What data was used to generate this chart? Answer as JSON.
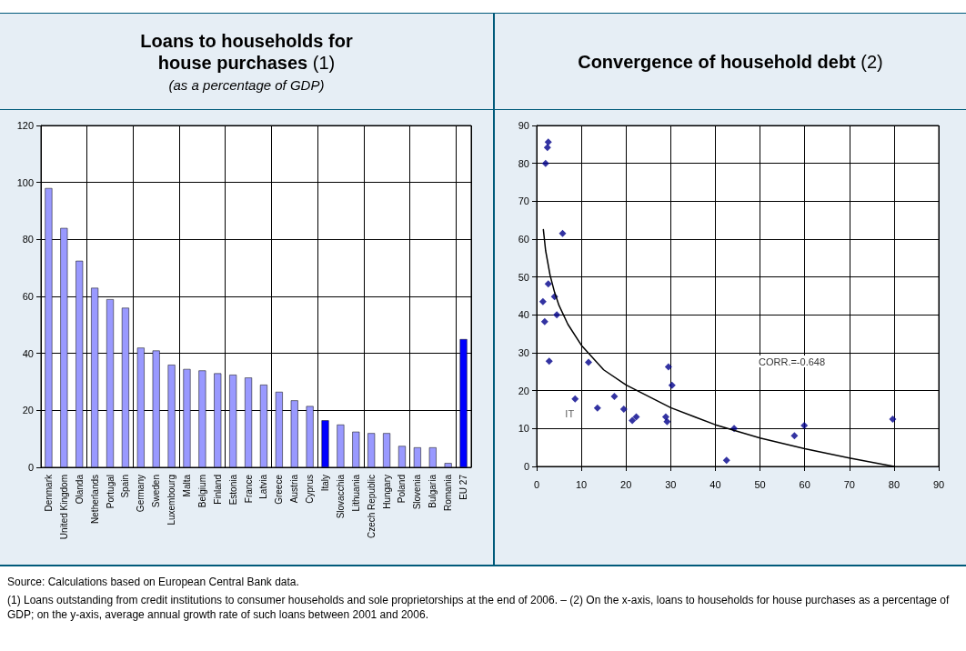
{
  "chart_data": [
    {
      "type": "bar",
      "title": "Loans to households for house purchases (1)",
      "subtitle": "(as a percentage of GDP)",
      "categories": [
        "Denmark",
        "United Kingdom",
        "Olanda",
        "Netherlands",
        "Portugal",
        "Spain",
        "Germany",
        "Sweden",
        "Luxembourg",
        "Malta",
        "Belgium",
        "Finland",
        "Estonia",
        "France",
        "Latvia",
        "Greece",
        "Austria",
        "Cyprus",
        "Italy",
        "Slovacchia",
        "Lithuania",
        "Czech Republic",
        "Hungary",
        "Poland",
        "Slovenia",
        "Bulgaria",
        "Romania",
        "EU 27"
      ],
      "values": [
        98,
        84,
        72.5,
        63,
        59,
        56,
        42,
        41,
        36,
        34.5,
        34,
        33,
        32.5,
        31.5,
        29,
        26.5,
        23.5,
        21.5,
        16.5,
        15,
        12.5,
        12,
        12,
        7.5,
        7,
        7,
        1.5,
        45
      ],
      "colors": [
        "#9999ff",
        "#9999ff",
        "#9999ff",
        "#9999ff",
        "#9999ff",
        "#9999ff",
        "#9999ff",
        "#9999ff",
        "#9999ff",
        "#9999ff",
        "#9999ff",
        "#9999ff",
        "#9999ff",
        "#9999ff",
        "#9999ff",
        "#9999ff",
        "#9999ff",
        "#9999ff",
        "#0000ff",
        "#9999ff",
        "#9999ff",
        "#9999ff",
        "#9999ff",
        "#9999ff",
        "#9999ff",
        "#9999ff",
        "#9999ff",
        "#0000ff"
      ],
      "ylim": [
        0,
        120
      ],
      "yticks": [
        0,
        20,
        40,
        60,
        80,
        100,
        120
      ],
      "grid": true,
      "annotations": [
        "Source: Calculations based on European Central Bank data.",
        "(1) Loans outstanding from credit institutions to consumer households and sole proprietorships at the end of 2006. – (2) On the x-axis, loans to households for house purchases as a percentage of GDP; on the y-axis, average annual growth rate of such loans between 2001 and 2006."
      ]
    },
    {
      "type": "scatter",
      "title": "Convergence of household debt (2)",
      "series": [
        {
          "type": "scatter",
          "color": "#00008b",
          "marker": "diamond",
          "x": [
            1.4,
            1.8,
            2.6,
            2.8,
            4.0,
            4.5,
            8.6,
            11.6,
            13.6,
            17.4,
            19.5,
            21.4,
            22.3,
            28.9,
            29.2,
            29.5,
            30.3,
            42.5,
            44.2,
            57.7,
            59.9,
            79.7,
            2.0,
            2.4,
            2.6,
            5.8
          ],
          "values": [
            43.5,
            38.2,
            48.2,
            27.8,
            44.8,
            40,
            17.8,
            27.5,
            15.4,
            18.5,
            15.1,
            12.1,
            13.1,
            13.1,
            11.8,
            26.3,
            21.4,
            1.6,
            10,
            8.1,
            10.8,
            12.5,
            80,
            84.2,
            85.6,
            61.5
          ]
        },
        {
          "type": "line",
          "color": "#000000",
          "marker": "none",
          "line_style": "solid",
          "x": [
            1.5,
            2,
            3,
            4,
            5,
            7,
            10,
            15,
            20,
            30,
            40,
            50,
            60,
            70,
            80
          ],
          "values": [
            62.5,
            57,
            50.5,
            46,
            42.5,
            37.5,
            32,
            25.5,
            21.5,
            15.5,
            11,
            7.5,
            4.7,
            2.2,
            0
          ]
        }
      ],
      "xlim": [
        0,
        90
      ],
      "xticks": [
        0,
        10,
        20,
        30,
        40,
        50,
        60,
        70,
        80,
        90
      ],
      "ylim": [
        0,
        90
      ],
      "yticks": [
        0,
        10,
        20,
        30,
        40,
        50,
        60,
        70,
        80,
        90
      ],
      "grid": true,
      "annotations": [
        {
          "text": "IT",
          "x": 8.6,
          "y": 17.8
        },
        "CORR.=-0.648"
      ]
    }
  ]
}
